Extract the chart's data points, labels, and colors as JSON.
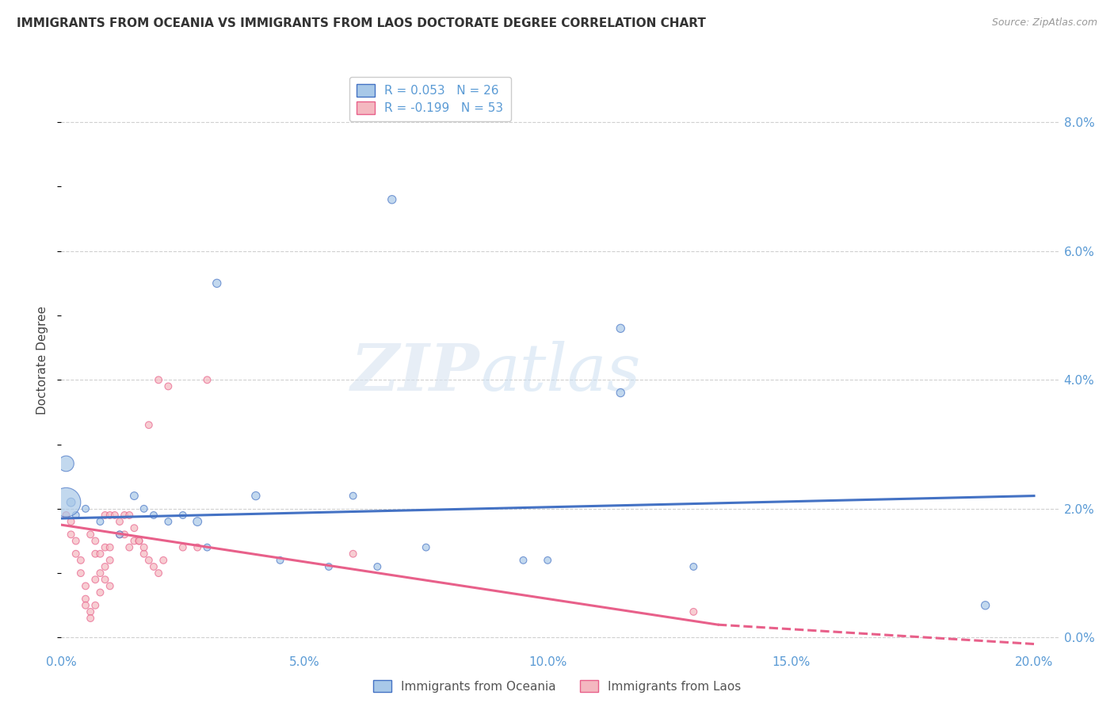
{
  "title": "IMMIGRANTS FROM OCEANIA VS IMMIGRANTS FROM LAOS DOCTORATE DEGREE CORRELATION CHART",
  "source": "Source: ZipAtlas.com",
  "ylabel": "Doctorate Degree",
  "right_ytick_labels": [
    "0.0%",
    "2.0%",
    "4.0%",
    "6.0%",
    "8.0%"
  ],
  "right_ytick_values": [
    0.0,
    0.02,
    0.04,
    0.06,
    0.08
  ],
  "xlim": [
    0.0,
    0.205
  ],
  "ylim": [
    -0.002,
    0.088
  ],
  "xtick_labels": [
    "0.0%",
    "",
    "",
    "",
    "5.0%",
    "",
    "",
    "",
    "",
    "10.0%",
    "",
    "",
    "",
    "",
    "15.0%",
    "",
    "",
    "",
    "",
    "20.0%"
  ],
  "xtick_major_labels": [
    "0.0%",
    "5.0%",
    "10.0%",
    "15.0%",
    "20.0%"
  ],
  "xtick_major_values": [
    0.0,
    0.05,
    0.1,
    0.15,
    0.2
  ],
  "color_oceania": "#a8c8e8",
  "color_laos": "#f4b8c0",
  "color_trend_oceania": "#4472c4",
  "color_trend_laos": "#e8608a",
  "background_color": "#ffffff",
  "grid_color": "#d0d0d0",
  "watermark_zip": "ZIP",
  "watermark_atlas": "atlas",
  "oceania_points": [
    [
      0.001,
      0.027
    ],
    [
      0.002,
      0.021
    ],
    [
      0.003,
      0.019
    ],
    [
      0.005,
      0.02
    ],
    [
      0.008,
      0.018
    ],
    [
      0.012,
      0.016
    ],
    [
      0.015,
      0.022
    ],
    [
      0.017,
      0.02
    ],
    [
      0.019,
      0.019
    ],
    [
      0.022,
      0.018
    ],
    [
      0.025,
      0.019
    ],
    [
      0.028,
      0.018
    ],
    [
      0.03,
      0.014
    ],
    [
      0.032,
      0.055
    ],
    [
      0.04,
      0.022
    ],
    [
      0.045,
      0.012
    ],
    [
      0.055,
      0.011
    ],
    [
      0.06,
      0.022
    ],
    [
      0.065,
      0.011
    ],
    [
      0.068,
      0.068
    ],
    [
      0.075,
      0.014
    ],
    [
      0.095,
      0.012
    ],
    [
      0.1,
      0.012
    ],
    [
      0.115,
      0.048
    ],
    [
      0.115,
      0.038
    ],
    [
      0.13,
      0.011
    ],
    [
      0.19,
      0.005
    ],
    [
      0.001,
      0.021
    ]
  ],
  "oceania_sizes": [
    200,
    60,
    40,
    40,
    40,
    40,
    50,
    40,
    40,
    40,
    40,
    60,
    40,
    55,
    55,
    40,
    40,
    40,
    40,
    55,
    40,
    40,
    40,
    55,
    55,
    40,
    55,
    700
  ],
  "laos_points": [
    [
      0.001,
      0.019
    ],
    [
      0.002,
      0.018
    ],
    [
      0.002,
      0.016
    ],
    [
      0.003,
      0.013
    ],
    [
      0.003,
      0.015
    ],
    [
      0.004,
      0.012
    ],
    [
      0.004,
      0.01
    ],
    [
      0.005,
      0.008
    ],
    [
      0.005,
      0.006
    ],
    [
      0.005,
      0.005
    ],
    [
      0.006,
      0.004
    ],
    [
      0.006,
      0.003
    ],
    [
      0.006,
      0.016
    ],
    [
      0.007,
      0.013
    ],
    [
      0.007,
      0.009
    ],
    [
      0.007,
      0.005
    ],
    [
      0.007,
      0.015
    ],
    [
      0.008,
      0.013
    ],
    [
      0.008,
      0.01
    ],
    [
      0.008,
      0.007
    ],
    [
      0.009,
      0.014
    ],
    [
      0.009,
      0.011
    ],
    [
      0.009,
      0.009
    ],
    [
      0.009,
      0.019
    ],
    [
      0.01,
      0.014
    ],
    [
      0.01,
      0.012
    ],
    [
      0.01,
      0.008
    ],
    [
      0.01,
      0.019
    ],
    [
      0.011,
      0.019
    ],
    [
      0.012,
      0.018
    ],
    [
      0.012,
      0.016
    ],
    [
      0.013,
      0.019
    ],
    [
      0.013,
      0.016
    ],
    [
      0.014,
      0.014
    ],
    [
      0.014,
      0.019
    ],
    [
      0.015,
      0.017
    ],
    [
      0.015,
      0.015
    ],
    [
      0.016,
      0.015
    ],
    [
      0.016,
      0.015
    ],
    [
      0.017,
      0.013
    ],
    [
      0.017,
      0.014
    ],
    [
      0.018,
      0.033
    ],
    [
      0.018,
      0.012
    ],
    [
      0.019,
      0.011
    ],
    [
      0.02,
      0.01
    ],
    [
      0.021,
      0.012
    ],
    [
      0.022,
      0.039
    ],
    [
      0.025,
      0.014
    ],
    [
      0.028,
      0.014
    ],
    [
      0.03,
      0.04
    ],
    [
      0.06,
      0.013
    ],
    [
      0.13,
      0.004
    ],
    [
      0.02,
      0.04
    ]
  ],
  "laos_sizes": [
    40,
    40,
    40,
    40,
    40,
    40,
    40,
    40,
    40,
    40,
    40,
    40,
    40,
    40,
    40,
    40,
    40,
    40,
    40,
    40,
    40,
    40,
    40,
    40,
    40,
    40,
    40,
    40,
    40,
    40,
    40,
    40,
    40,
    40,
    40,
    40,
    40,
    40,
    40,
    40,
    40,
    40,
    40,
    40,
    40,
    40,
    40,
    40,
    40,
    40,
    40,
    40,
    40
  ],
  "trend_oceania_x0": 0.0,
  "trend_oceania_y0": 0.0185,
  "trend_oceania_x1": 0.2,
  "trend_oceania_y1": 0.022,
  "trend_laos_x0": 0.0,
  "trend_laos_y0": 0.0175,
  "trend_laos_solid_x1": 0.135,
  "trend_laos_solid_y1": 0.002,
  "trend_laos_x1": 0.2,
  "trend_laos_y1": -0.001
}
